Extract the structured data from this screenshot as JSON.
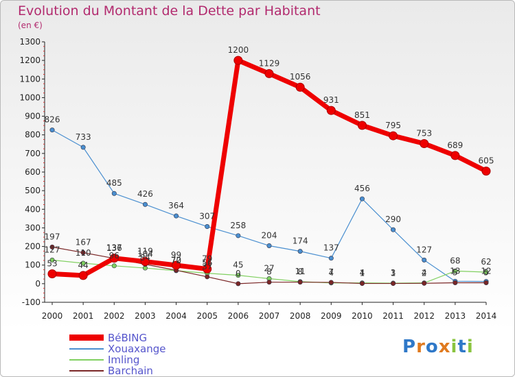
{
  "title": "Evolution du Montant de la Dette par Habitant",
  "subtitle": "(en €)",
  "logo": "Proxiti",
  "chart_data": {
    "type": "line",
    "x": [
      "2000",
      "2001",
      "2002",
      "2003",
      "2004",
      "2005",
      "2006",
      "2007",
      "2008",
      "2009",
      "2010",
      "2011",
      "2012",
      "2013",
      "2014"
    ],
    "ylim": [
      -100,
      1300
    ],
    "yticks": [
      -100,
      0,
      100,
      200,
      300,
      400,
      500,
      600,
      700,
      800,
      900,
      1000,
      1100,
      1200,
      1300
    ],
    "grid": false,
    "legend_position": "bottom-left",
    "series": [
      {
        "name": "BéBING",
        "color": "#ee0000",
        "values": [
          53,
          44,
          137,
          119,
          99,
          79,
          1200,
          1129,
          1056,
          931,
          851,
          795,
          753,
          689,
          605
        ],
        "labels": [
          "53",
          "44",
          "137",
          "119",
          "99",
          "79",
          "1200",
          "1129",
          "1056",
          "931",
          "851",
          "795",
          "753",
          "689",
          "605"
        ]
      },
      {
        "name": "Xouaxange",
        "color": "#4a8fd0",
        "values": [
          826,
          733,
          485,
          426,
          364,
          307,
          258,
          204,
          174,
          137,
          456,
          290,
          127,
          13,
          12
        ],
        "labels": [
          "826",
          "733",
          "485",
          "426",
          "364",
          "307",
          "258",
          "204",
          "174",
          "137",
          "456",
          "290",
          "127",
          "13",
          "12"
        ]
      },
      {
        "name": "Imling",
        "color": "#80d060",
        "values": [
          127,
          110,
          96,
          84,
          70,
          56,
          45,
          27,
          11,
          4,
          4,
          3,
          4,
          68,
          62
        ],
        "labels": [
          "127",
          "110",
          "96",
          "84",
          "70",
          "56",
          "45",
          "27",
          "11",
          "4",
          "4",
          "3",
          "4",
          "68",
          "62"
        ]
      },
      {
        "name": "Barchain",
        "color": "#7a2626",
        "values": [
          197,
          167,
          136,
          104,
          72,
          37,
          0,
          8,
          8,
          7,
          1,
          1,
          2,
          5,
          5
        ],
        "labels": [
          "197",
          "167",
          "136",
          "104",
          "72",
          "37",
          "0",
          "8",
          "8",
          "7",
          "1",
          "1",
          "2",
          "5",
          "5"
        ]
      }
    ]
  }
}
